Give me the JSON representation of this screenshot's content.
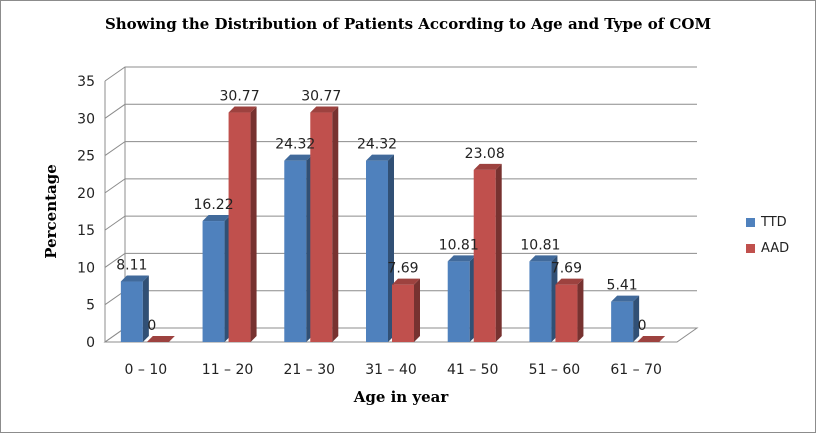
{
  "chart_data": {
    "type": "bar",
    "title": "Showing the Distribution of Patients According to Age and Type of COM",
    "xlabel": "Age in year",
    "ylabel": "Percentage",
    "ylim": [
      0,
      35
    ],
    "yticks": [
      "0",
      "5",
      "10",
      "15",
      "20",
      "25",
      "30",
      "35"
    ],
    "categories": [
      "0 – 10",
      "11 – 20",
      "21 – 30",
      "31 – 40",
      "41 – 50",
      "51 – 60",
      "61 – 70"
    ],
    "series": [
      {
        "name": "TTD",
        "values": [
          8.11,
          16.22,
          24.32,
          24.32,
          10.81,
          10.81,
          5.41
        ],
        "labels": [
          "8.11",
          "16.22",
          "24.32",
          "24.32",
          "10.81",
          "10.81",
          "5.41"
        ],
        "color": "#4f81bd"
      },
      {
        "name": "AAD",
        "values": [
          0,
          30.77,
          30.77,
          7.69,
          23.08,
          7.69,
          0
        ],
        "labels": [
          "0",
          "30.77",
          "30.77",
          "7.69",
          "23.08",
          "7.69",
          "0"
        ],
        "color": "#c0504d"
      }
    ],
    "grid": true,
    "legend": "right",
    "style": "3d-clustered-column"
  }
}
